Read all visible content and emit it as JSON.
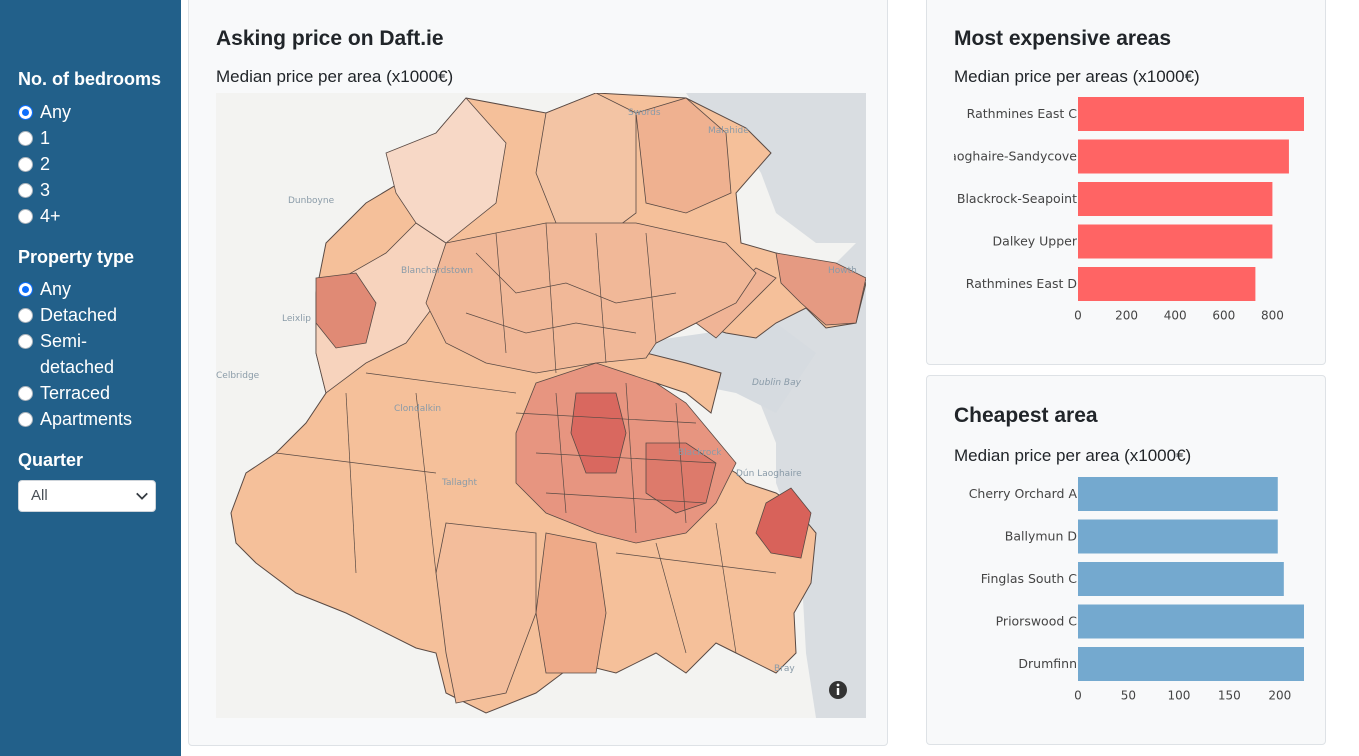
{
  "sidebar": {
    "bedrooms_title": "No. of bedrooms",
    "bedroom_options": [
      "Any",
      "1",
      "2",
      "3",
      "4+"
    ],
    "bedroom_selected": "Any",
    "property_title": "Property type",
    "property_options": [
      "Any",
      "Detached",
      "Semi-detached",
      "Terraced",
      "Apartments"
    ],
    "property_selected": "Any",
    "quarter_title": "Quarter",
    "quarter_value": "All"
  },
  "map_card": {
    "title": "Asking price on Daft.ie",
    "subtitle": "Median price per area (x1000€)",
    "place_labels": [
      "Swords",
      "Malahide",
      "Dunboyne",
      "Blanchardstown",
      "Leixlip",
      "Celbridge",
      "Clondalkin",
      "Tallaght",
      "Blackrock",
      "Dún Laoghaire",
      "Dublin Bay",
      "Howth",
      "Bray"
    ],
    "info_icon": "info-icon"
  },
  "expensive_card": {
    "title": "Most expensive areas",
    "subtitle": "Median price per areas (x1000€)"
  },
  "cheap_card": {
    "title": "Cheapest area",
    "subtitle": "Median price per area (x1000€)"
  },
  "colors": {
    "sidebar": "#22608a",
    "expensive_bar": "#ff6464",
    "cheap_bar": "#74a9cf"
  },
  "chart_data": [
    {
      "type": "bar",
      "orientation": "horizontal",
      "categories": [
        "Rathmines East C",
        "Dún Laoghaire-Sandycove",
        "Blackrock-Seapoint",
        "Dalkey Upper",
        "Rathmines East D"
      ],
      "values": [
        930,
        868,
        800,
        800,
        730
      ],
      "xticks": [
        "0",
        "200",
        "400",
        "600",
        "800"
      ],
      "xlim": [
        0,
        930
      ]
    },
    {
      "type": "bar",
      "orientation": "horizontal",
      "categories": [
        "Cherry Orchard A",
        "Ballymun D",
        "Finglas South C",
        "Priorswood C",
        "Drumfinn"
      ],
      "values": [
        198,
        198,
        204,
        224,
        224
      ],
      "xticks": [
        "0",
        "50",
        "100",
        "150",
        "200"
      ],
      "xlim": [
        0,
        224
      ]
    }
  ]
}
